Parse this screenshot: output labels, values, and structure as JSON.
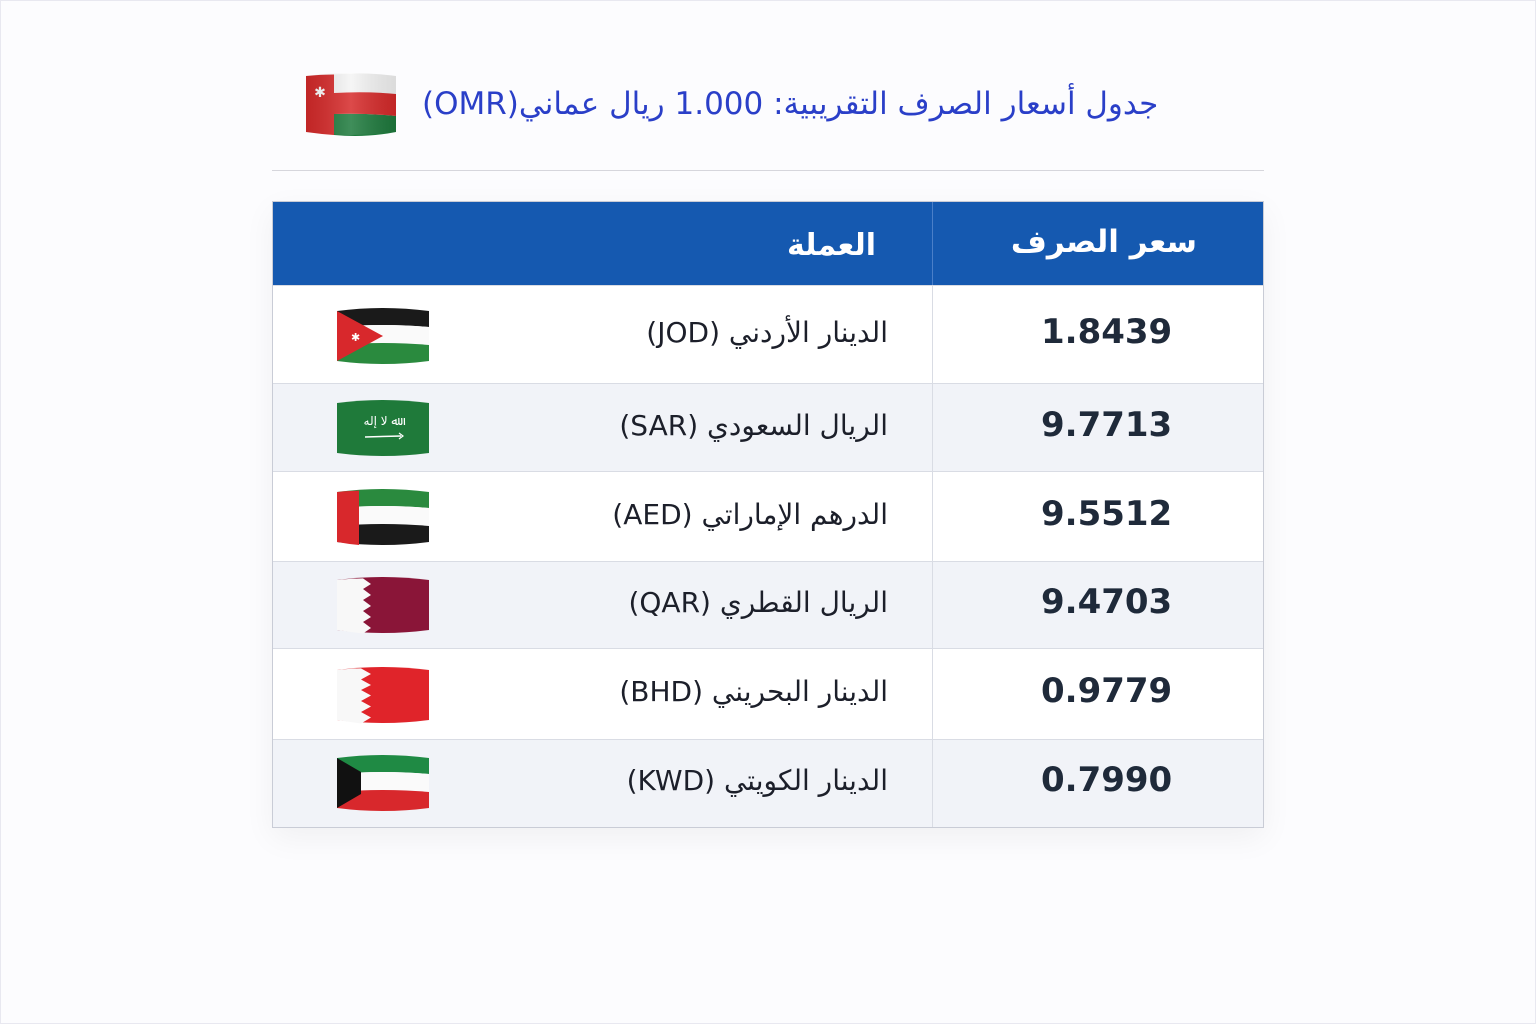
{
  "title": "جدول أسعار الصرف التقريبية: 1.000 ريال عماني(OMR)",
  "header": {
    "currency_label": "العملة",
    "rate_label": "سعر الصرف"
  },
  "rows": [
    {
      "currency": "الدينار الأردني (JOD)",
      "rate": "1.8439",
      "flag": "jordan-flag-icon"
    },
    {
      "currency": "الريال السعودي (SAR)",
      "rate": "9.7713",
      "flag": "saudi-flag-icon"
    },
    {
      "currency": "الدرهم الإماراتي (AED)",
      "rate": "9.5512",
      "flag": "uae-flag-icon"
    },
    {
      "currency": "الريال القطري (QAR)",
      "rate": "9.4703",
      "flag": "qatar-flag-icon"
    },
    {
      "currency": "الدينار البحريني (BHD)",
      "rate": "0.9779",
      "flag": "bahrain-flag-icon"
    },
    {
      "currency": "الدينار الكويتي (KWD)",
      "rate": "0.7990",
      "flag": "kuwait-flag-icon"
    }
  ],
  "colors": {
    "header_bg": "#1559b0",
    "title_text": "#2a3fc8"
  }
}
